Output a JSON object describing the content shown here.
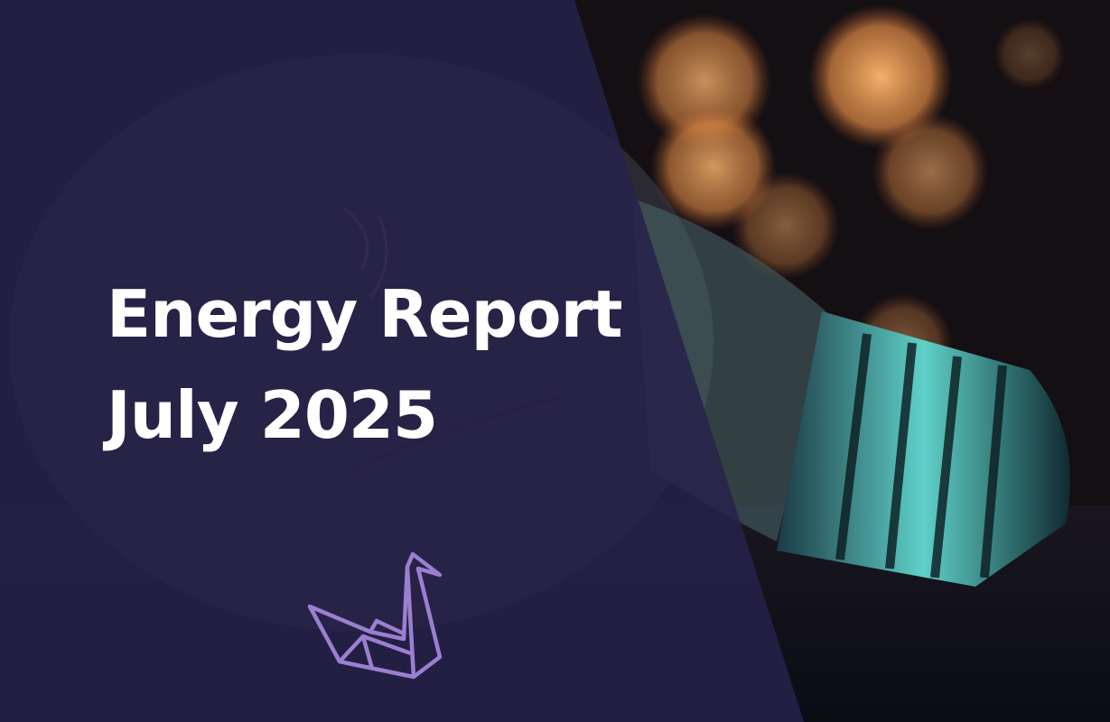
{
  "slide": {
    "title_line1": "Energy Report",
    "title_line2": "July 2025"
  },
  "logo": {
    "icon": "origami-swan-icon",
    "color": "#9b7fd0"
  },
  "colors": {
    "overlay": "#26224a",
    "bokeh": "#f3a55a",
    "bulb_base": "#4fc7c0"
  }
}
